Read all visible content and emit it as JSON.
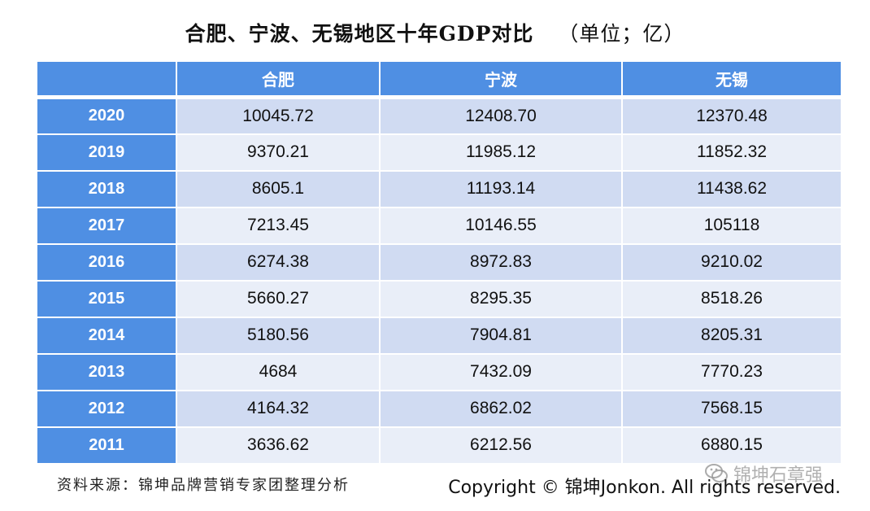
{
  "title": {
    "main": "合肥、宁波、无锡地区十年GDP对比",
    "unit": "（单位；亿）"
  },
  "chart_data": {
    "type": "table",
    "title": "合肥、宁波、无锡地区十年GDP对比",
    "unit": "（单位；亿）",
    "columns": [
      "",
      "合肥",
      "宁波",
      "无锡"
    ],
    "rows": [
      {
        "year": "2020",
        "values": [
          "10045.72",
          "12408.70",
          "12370.48"
        ]
      },
      {
        "year": "2019",
        "values": [
          "9370.21",
          "11985.12",
          "11852.32"
        ]
      },
      {
        "year": "2018",
        "values": [
          "8605.1",
          "11193.14",
          "11438.62"
        ]
      },
      {
        "year": "2017",
        "values": [
          "7213.45",
          "10146.55",
          "105118"
        ]
      },
      {
        "year": "2016",
        "values": [
          "6274.38",
          "8972.83",
          "9210.02"
        ]
      },
      {
        "year": "2015",
        "values": [
          "5660.27",
          "8295.35",
          "8518.26"
        ]
      },
      {
        "year": "2014",
        "values": [
          "5180.56",
          "7904.81",
          "8205.31"
        ]
      },
      {
        "year": "2013",
        "values": [
          "4684",
          "7432.09",
          "7770.23"
        ]
      },
      {
        "year": "2012",
        "values": [
          "4164.32",
          "6862.02",
          "7568.15"
        ]
      },
      {
        "year": "2011",
        "values": [
          "3636.62",
          "6212.56",
          "6880.15"
        ]
      }
    ]
  },
  "footer": {
    "source": "资料来源：锦坤品牌营销专家团整理分析",
    "copyright": "Copyright © 锦坤Jonkon. All rights reserved.",
    "watermark": "锦坤石章强",
    "watermark_icon": "wechat-icon"
  },
  "colors": {
    "header_blue": "#4f8fe3",
    "row_dark": "#d0dbf2",
    "row_light": "#e9eef8"
  }
}
